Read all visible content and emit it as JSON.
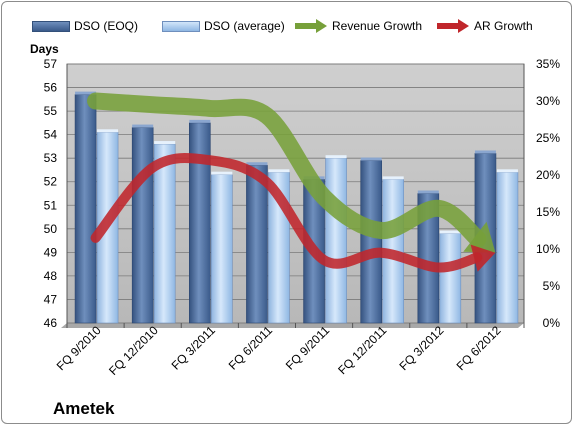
{
  "legend": {
    "dso_eoq": "DSO (EOQ)",
    "dso_avg": "DSO (average)",
    "rev_growth": "Revenue Growth",
    "ar_growth": "AR Growth"
  },
  "y_left_title": "Days",
  "company": "Ametek",
  "colors": {
    "dso_eoq": "#4a6b9b",
    "dso_avg": "#a9cbee",
    "revenue_growth": "#77a03a",
    "ar_growth": "#c0262b",
    "plot_bg": "#c0c0c0"
  },
  "chart_data": {
    "type": "bar",
    "categories": [
      "FQ 9/2010",
      "FQ 12/2010",
      "FQ 3/2011",
      "FQ 6/2011",
      "FQ 9/2011",
      "FQ 12/2011",
      "FQ 3/2012",
      "FQ 6/2012"
    ],
    "series": [
      {
        "name": "DSO (EOQ)",
        "axis": "left",
        "type": "bar",
        "values": [
          55.7,
          54.3,
          54.5,
          52.7,
          52.1,
          52.9,
          51.5,
          53.2
        ]
      },
      {
        "name": "DSO (average)",
        "axis": "left",
        "type": "bar",
        "values": [
          54.1,
          53.6,
          52.3,
          52.4,
          53.0,
          52.1,
          49.8,
          52.4
        ]
      },
      {
        "name": "Revenue Growth",
        "axis": "right",
        "type": "line",
        "values": [
          0.3,
          0.295,
          0.29,
          0.28,
          0.17,
          0.125,
          0.155,
          0.095
        ]
      },
      {
        "name": "AR Growth",
        "axis": "right",
        "type": "line",
        "values": [
          0.115,
          0.21,
          0.22,
          0.19,
          0.085,
          0.095,
          0.075,
          0.095
        ]
      }
    ],
    "ylabel": "Days",
    "ylim": [
      46,
      57
    ],
    "yticks": [
      "46",
      "47",
      "48",
      "49",
      "50",
      "51",
      "52",
      "53",
      "54",
      "55",
      "56",
      "57"
    ],
    "y2lim": [
      0,
      0.35
    ],
    "y2ticks": [
      "0%",
      "5%",
      "10%",
      "15%",
      "20%",
      "25%",
      "30%",
      "35%"
    ],
    "grid": "horizontal",
    "legend_position": "top"
  }
}
